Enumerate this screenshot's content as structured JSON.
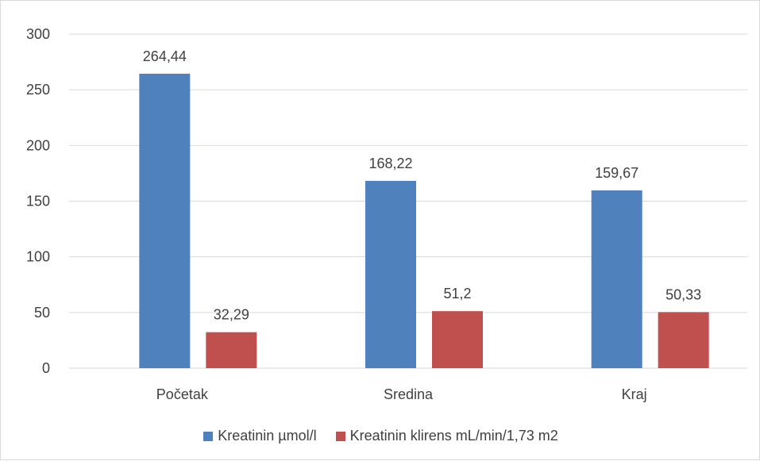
{
  "chart_data": {
    "type": "bar",
    "categories": [
      "Početak",
      "Sredina",
      "Kraj"
    ],
    "series": [
      {
        "name": "Kreatinin µmol/l",
        "values": [
          264.44,
          168.22,
          159.67
        ],
        "labels": [
          "264,44",
          "168,22",
          "159,67"
        ],
        "color": "#4f81bd"
      },
      {
        "name": "Kreatinin klirens mL/min/1,73 m2",
        "values": [
          32.29,
          51.2,
          50.33
        ],
        "labels": [
          "32,29",
          "51,2",
          "50,33"
        ],
        "color": "#c0504d"
      }
    ],
    "y_ticks": [
      "0",
      "50",
      "100",
      "150",
      "200",
      "250",
      "300"
    ],
    "ylim": [
      0,
      300
    ],
    "grid": true,
    "legend_position": "bottom",
    "gridline_color": "#d9d9d9"
  }
}
